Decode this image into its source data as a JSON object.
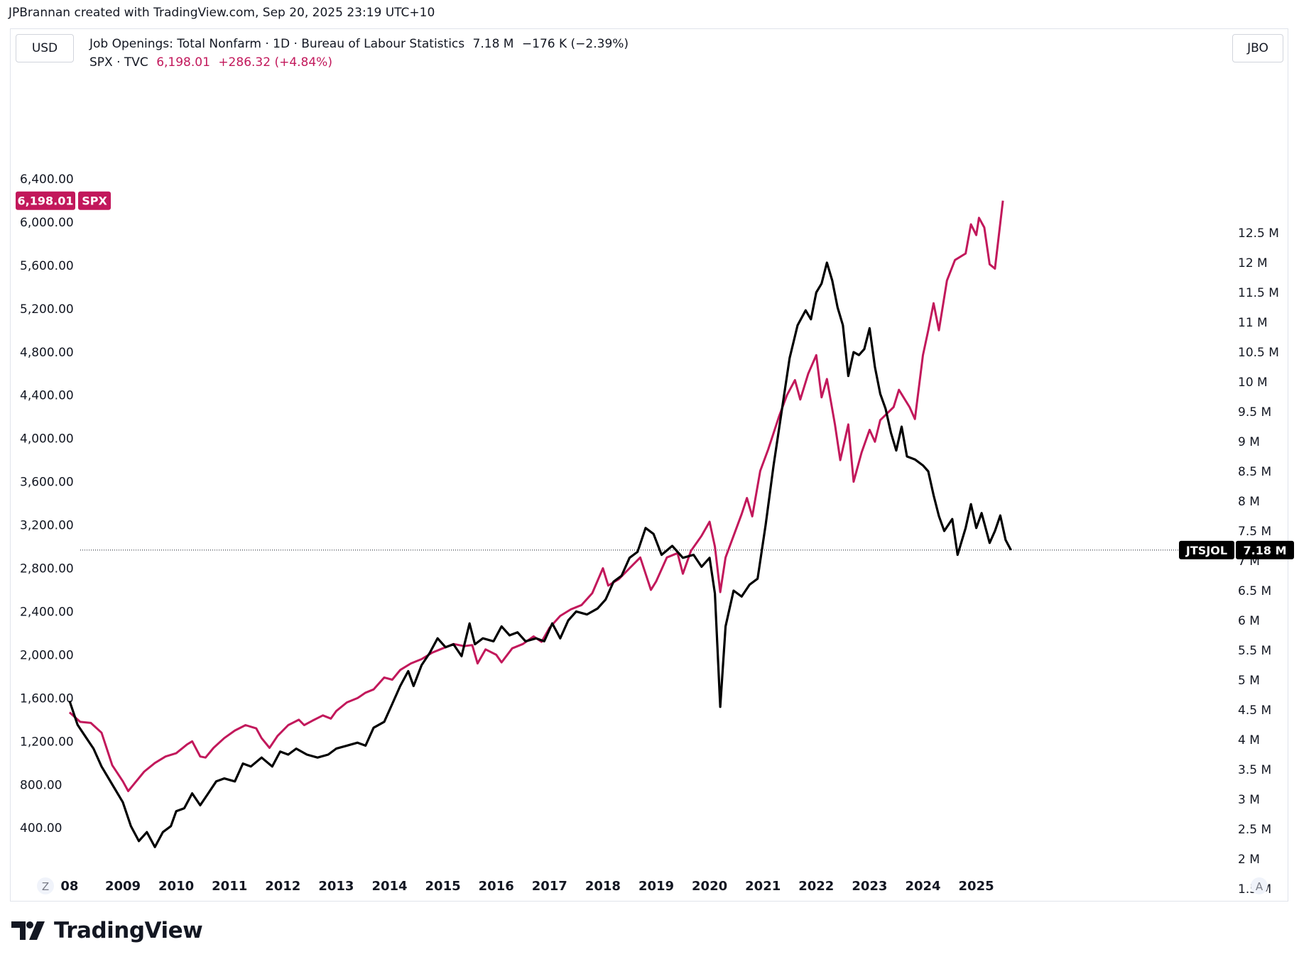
{
  "credit": "JPBrannan created with TradingView.com, Sep 20, 2025 23:19 UTC+10",
  "currency_badge": "USD",
  "right_badge": "JBO",
  "legend": {
    "line1": {
      "name": "Job Openings: Total Nonfarm · 1D · Bureau of Labour Statistics",
      "value": "7.18 M",
      "change": "−176 K (−2.39%)"
    },
    "line2": {
      "name": "SPX · TVC",
      "value": "6,198.01",
      "change": "+286.32 (+4.84%)"
    }
  },
  "corner_left": "Z",
  "corner_right": "A",
  "brand": "TradingView",
  "colors": {
    "spx": "#c2185b",
    "jobs": "#000000",
    "text": "#131722",
    "border": "#e0e3eb"
  },
  "chart_data": {
    "type": "line",
    "x_ticks": [
      "08",
      "2009",
      "2010",
      "2011",
      "2012",
      "2013",
      "2014",
      "2015",
      "2016",
      "2017",
      "2018",
      "2019",
      "2020",
      "2021",
      "2022",
      "2023",
      "2024",
      "2025"
    ],
    "left_axis": {
      "series": "SPX",
      "ticks": [
        "6,400.00",
        "6,000.00",
        "5,600.00",
        "5,200.00",
        "4,800.00",
        "4,400.00",
        "4,000.00",
        "3,600.00",
        "3,200.00",
        "2,800.00",
        "2,400.00",
        "2,000.00",
        "1,600.00",
        "1,200.00",
        "800.00",
        "400.00"
      ],
      "tick_values": [
        6400,
        6000,
        5600,
        5200,
        4800,
        4400,
        4000,
        3600,
        3200,
        2800,
        2400,
        2000,
        1600,
        1200,
        800,
        400
      ],
      "last_label": "6,198.01",
      "last_tag": "SPX",
      "last_value": 6198.01
    },
    "right_axis": {
      "series": "JTSJOL",
      "ticks": [
        "12.5 M",
        "12 M",
        "11.5 M",
        "11 M",
        "10.5 M",
        "10 M",
        "9.5 M",
        "9 M",
        "8.5 M",
        "8 M",
        "7.5 M",
        "7 M",
        "6.5 M",
        "6 M",
        "5.5 M",
        "5 M",
        "4.5 M",
        "4 M",
        "3.5 M",
        "3 M",
        "2.5 M",
        "2 M",
        "1.5 M"
      ],
      "tick_values": [
        12.5,
        12,
        11.5,
        11,
        10.5,
        10,
        9.5,
        9,
        8.5,
        8,
        7.5,
        7,
        6.5,
        6,
        5.5,
        5,
        4.5,
        4,
        3.5,
        3,
        2.5,
        2,
        1.5
      ],
      "last_label": "7.18 M",
      "last_tag": "JTSJOL",
      "last_value": 7.18
    },
    "series": [
      {
        "name": "SPX",
        "color": "#c2185b",
        "points": [
          [
            2008.0,
            1468
          ],
          [
            2008.2,
            1380
          ],
          [
            2008.4,
            1370
          ],
          [
            2008.6,
            1280
          ],
          [
            2008.8,
            980
          ],
          [
            2009.0,
            830
          ],
          [
            2009.1,
            740
          ],
          [
            2009.2,
            800
          ],
          [
            2009.4,
            920
          ],
          [
            2009.6,
            1000
          ],
          [
            2009.8,
            1060
          ],
          [
            2010.0,
            1090
          ],
          [
            2010.2,
            1170
          ],
          [
            2010.3,
            1200
          ],
          [
            2010.45,
            1060
          ],
          [
            2010.55,
            1050
          ],
          [
            2010.7,
            1140
          ],
          [
            2010.9,
            1230
          ],
          [
            2011.1,
            1300
          ],
          [
            2011.3,
            1350
          ],
          [
            2011.5,
            1320
          ],
          [
            2011.6,
            1230
          ],
          [
            2011.75,
            1140
          ],
          [
            2011.9,
            1250
          ],
          [
            2012.1,
            1350
          ],
          [
            2012.3,
            1400
          ],
          [
            2012.4,
            1350
          ],
          [
            2012.55,
            1390
          ],
          [
            2012.75,
            1440
          ],
          [
            2012.9,
            1410
          ],
          [
            2013.0,
            1480
          ],
          [
            2013.2,
            1560
          ],
          [
            2013.4,
            1600
          ],
          [
            2013.55,
            1650
          ],
          [
            2013.7,
            1680
          ],
          [
            2013.9,
            1790
          ],
          [
            2014.05,
            1770
          ],
          [
            2014.2,
            1860
          ],
          [
            2014.4,
            1920
          ],
          [
            2014.6,
            1960
          ],
          [
            2014.8,
            2020
          ],
          [
            2014.95,
            2050
          ],
          [
            2015.2,
            2100
          ],
          [
            2015.4,
            2080
          ],
          [
            2015.55,
            2090
          ],
          [
            2015.65,
            1920
          ],
          [
            2015.8,
            2050
          ],
          [
            2016.0,
            2000
          ],
          [
            2016.1,
            1930
          ],
          [
            2016.3,
            2060
          ],
          [
            2016.5,
            2100
          ],
          [
            2016.7,
            2170
          ],
          [
            2016.85,
            2120
          ],
          [
            2017.0,
            2250
          ],
          [
            2017.2,
            2360
          ],
          [
            2017.4,
            2420
          ],
          [
            2017.6,
            2460
          ],
          [
            2017.8,
            2570
          ],
          [
            2018.0,
            2800
          ],
          [
            2018.1,
            2640
          ],
          [
            2018.3,
            2700
          ],
          [
            2018.5,
            2800
          ],
          [
            2018.7,
            2900
          ],
          [
            2018.9,
            2600
          ],
          [
            2019.0,
            2680
          ],
          [
            2019.2,
            2900
          ],
          [
            2019.4,
            2940
          ],
          [
            2019.5,
            2750
          ],
          [
            2019.65,
            2960
          ],
          [
            2019.85,
            3100
          ],
          [
            2020.0,
            3230
          ],
          [
            2020.1,
            3000
          ],
          [
            2020.2,
            2580
          ],
          [
            2020.3,
            2900
          ],
          [
            2020.45,
            3100
          ],
          [
            2020.6,
            3300
          ],
          [
            2020.7,
            3450
          ],
          [
            2020.8,
            3280
          ],
          [
            2020.95,
            3700
          ],
          [
            2021.1,
            3900
          ],
          [
            2021.3,
            4200
          ],
          [
            2021.45,
            4400
          ],
          [
            2021.6,
            4540
          ],
          [
            2021.7,
            4360
          ],
          [
            2021.85,
            4600
          ],
          [
            2022.0,
            4770
          ],
          [
            2022.1,
            4380
          ],
          [
            2022.2,
            4550
          ],
          [
            2022.35,
            4130
          ],
          [
            2022.45,
            3800
          ],
          [
            2022.6,
            4130
          ],
          [
            2022.7,
            3600
          ],
          [
            2022.85,
            3870
          ],
          [
            2023.0,
            4080
          ],
          [
            2023.1,
            3970
          ],
          [
            2023.2,
            4170
          ],
          [
            2023.45,
            4290
          ],
          [
            2023.55,
            4450
          ],
          [
            2023.75,
            4290
          ],
          [
            2023.85,
            4180
          ],
          [
            2024.0,
            4770
          ],
          [
            2024.1,
            5000
          ],
          [
            2024.2,
            5250
          ],
          [
            2024.3,
            5000
          ],
          [
            2024.45,
            5460
          ],
          [
            2024.6,
            5650
          ],
          [
            2024.8,
            5710
          ],
          [
            2024.9,
            5980
          ],
          [
            2025.0,
            5880
          ],
          [
            2025.05,
            6040
          ],
          [
            2025.15,
            5950
          ],
          [
            2025.25,
            5610
          ],
          [
            2025.35,
            5570
          ],
          [
            2025.5,
            6198.01
          ]
        ]
      },
      {
        "name": "JTSJOL",
        "color": "#000000",
        "points": [
          [
            2008.0,
            4.65
          ],
          [
            2008.15,
            4.25
          ],
          [
            2008.3,
            4.05
          ],
          [
            2008.45,
            3.85
          ],
          [
            2008.6,
            3.55
          ],
          [
            2008.8,
            3.25
          ],
          [
            2009.0,
            2.95
          ],
          [
            2009.15,
            2.55
          ],
          [
            2009.3,
            2.3
          ],
          [
            2009.45,
            2.45
          ],
          [
            2009.6,
            2.2
          ],
          [
            2009.75,
            2.45
          ],
          [
            2009.9,
            2.55
          ],
          [
            2010.0,
            2.8
          ],
          [
            2010.15,
            2.85
          ],
          [
            2010.3,
            3.1
          ],
          [
            2010.45,
            2.9
          ],
          [
            2010.6,
            3.1
          ],
          [
            2010.75,
            3.3
          ],
          [
            2010.9,
            3.35
          ],
          [
            2011.1,
            3.3
          ],
          [
            2011.25,
            3.6
          ],
          [
            2011.4,
            3.55
          ],
          [
            2011.6,
            3.7
          ],
          [
            2011.8,
            3.55
          ],
          [
            2011.95,
            3.8
          ],
          [
            2012.1,
            3.75
          ],
          [
            2012.25,
            3.85
          ],
          [
            2012.45,
            3.75
          ],
          [
            2012.65,
            3.7
          ],
          [
            2012.85,
            3.75
          ],
          [
            2013.0,
            3.85
          ],
          [
            2013.2,
            3.9
          ],
          [
            2013.4,
            3.95
          ],
          [
            2013.55,
            3.9
          ],
          [
            2013.7,
            4.2
          ],
          [
            2013.9,
            4.3
          ],
          [
            2014.05,
            4.6
          ],
          [
            2014.2,
            4.9
          ],
          [
            2014.35,
            5.15
          ],
          [
            2014.45,
            4.9
          ],
          [
            2014.6,
            5.25
          ],
          [
            2014.75,
            5.45
          ],
          [
            2014.9,
            5.7
          ],
          [
            2015.05,
            5.55
          ],
          [
            2015.2,
            5.6
          ],
          [
            2015.35,
            5.4
          ],
          [
            2015.5,
            5.95
          ],
          [
            2015.6,
            5.6
          ],
          [
            2015.75,
            5.7
          ],
          [
            2015.95,
            5.65
          ],
          [
            2016.1,
            5.9
          ],
          [
            2016.25,
            5.75
          ],
          [
            2016.4,
            5.8
          ],
          [
            2016.55,
            5.65
          ],
          [
            2016.75,
            5.7
          ],
          [
            2016.9,
            5.65
          ],
          [
            2017.05,
            5.95
          ],
          [
            2017.2,
            5.7
          ],
          [
            2017.35,
            6.0
          ],
          [
            2017.5,
            6.15
          ],
          [
            2017.7,
            6.1
          ],
          [
            2017.9,
            6.2
          ],
          [
            2018.05,
            6.35
          ],
          [
            2018.2,
            6.65
          ],
          [
            2018.35,
            6.75
          ],
          [
            2018.5,
            7.05
          ],
          [
            2018.65,
            7.15
          ],
          [
            2018.8,
            7.55
          ],
          [
            2018.95,
            7.45
          ],
          [
            2019.1,
            7.1
          ],
          [
            2019.3,
            7.25
          ],
          [
            2019.5,
            7.05
          ],
          [
            2019.7,
            7.1
          ],
          [
            2019.85,
            6.9
          ],
          [
            2020.0,
            7.05
          ],
          [
            2020.1,
            6.45
          ],
          [
            2020.2,
            4.55
          ],
          [
            2020.3,
            5.9
          ],
          [
            2020.45,
            6.5
          ],
          [
            2020.6,
            6.4
          ],
          [
            2020.75,
            6.6
          ],
          [
            2020.9,
            6.7
          ],
          [
            2021.05,
            7.6
          ],
          [
            2021.2,
            8.6
          ],
          [
            2021.35,
            9.5
          ],
          [
            2021.5,
            10.4
          ],
          [
            2021.65,
            10.95
          ],
          [
            2021.8,
            11.2
          ],
          [
            2021.9,
            11.05
          ],
          [
            2022.0,
            11.5
          ],
          [
            2022.1,
            11.65
          ],
          [
            2022.2,
            12.0
          ],
          [
            2022.3,
            11.7
          ],
          [
            2022.4,
            11.25
          ],
          [
            2022.5,
            10.95
          ],
          [
            2022.6,
            10.1
          ],
          [
            2022.7,
            10.5
          ],
          [
            2022.8,
            10.45
          ],
          [
            2022.9,
            10.55
          ],
          [
            2023.0,
            10.9
          ],
          [
            2023.1,
            10.25
          ],
          [
            2023.2,
            9.8
          ],
          [
            2023.3,
            9.55
          ],
          [
            2023.4,
            9.15
          ],
          [
            2023.5,
            8.85
          ],
          [
            2023.6,
            9.25
          ],
          [
            2023.7,
            8.75
          ],
          [
            2023.85,
            8.7
          ],
          [
            2024.0,
            8.6
          ],
          [
            2024.1,
            8.5
          ],
          [
            2024.2,
            8.1
          ],
          [
            2024.3,
            7.75
          ],
          [
            2024.4,
            7.5
          ],
          [
            2024.55,
            7.7
          ],
          [
            2024.65,
            7.1
          ],
          [
            2024.8,
            7.55
          ],
          [
            2024.9,
            7.95
          ],
          [
            2025.0,
            7.55
          ],
          [
            2025.1,
            7.8
          ],
          [
            2025.25,
            7.3
          ],
          [
            2025.35,
            7.5
          ],
          [
            2025.45,
            7.76
          ],
          [
            2025.55,
            7.35
          ],
          [
            2025.65,
            7.18
          ]
        ]
      }
    ]
  }
}
